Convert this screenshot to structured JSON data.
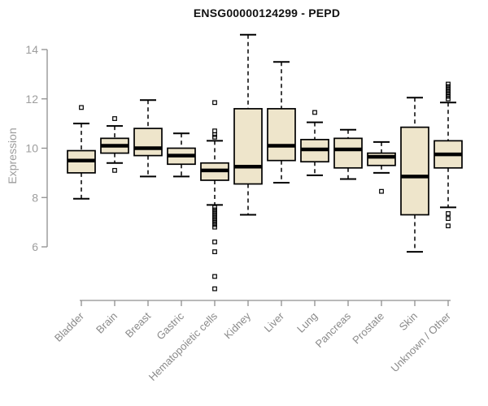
{
  "title": "ENSG00000124299 - PEPD",
  "y_axis": {
    "label": "Expression",
    "ticks": [
      6,
      8,
      10,
      12,
      14
    ]
  },
  "colors": {
    "background": "#ffffff",
    "box_fill": "#EEE5CB",
    "box_border": "#000000",
    "median": "#000000",
    "whisker": "#000000",
    "outlier": "#000000",
    "axis": "#8f8f8f",
    "y_tick_label": "#9d9d9d",
    "x_tick_label": "#8a8a8a",
    "title": "#111111"
  },
  "chart_data": {
    "type": "boxplot",
    "title": "ENSG00000124299 - PEPD",
    "xlabel": "",
    "ylabel": "Expression",
    "ylim": [
      4,
      14.7
    ],
    "yticks": [
      6,
      8,
      10,
      12,
      14
    ],
    "grid": false,
    "legend": null,
    "categories": [
      "Bladder",
      "Brain",
      "Breast",
      "Gastric",
      "Hematopoietic cells",
      "Kidney",
      "Liver",
      "Lung",
      "Pancreas",
      "Prostate",
      "Skin",
      "Unknown / Other"
    ],
    "series": [
      {
        "name": "Bladder",
        "whisker_low": 7.95,
        "q1": 9.0,
        "median": 9.5,
        "q3": 9.9,
        "whisker_high": 11.0,
        "outliers": [
          11.65
        ]
      },
      {
        "name": "Brain",
        "whisker_low": 9.4,
        "q1": 9.8,
        "median": 10.1,
        "q3": 10.4,
        "whisker_high": 10.9,
        "outliers": [
          11.2,
          9.1
        ]
      },
      {
        "name": "Breast",
        "whisker_low": 8.85,
        "q1": 9.7,
        "median": 10.0,
        "q3": 10.8,
        "whisker_high": 11.95,
        "outliers": []
      },
      {
        "name": "Gastric",
        "whisker_low": 8.85,
        "q1": 9.35,
        "median": 9.7,
        "q3": 10.0,
        "whisker_high": 10.6,
        "outliers": []
      },
      {
        "name": "Hematopoietic cells",
        "whisker_low": 7.7,
        "q1": 8.7,
        "median": 9.1,
        "q3": 9.4,
        "whisker_high": 10.3,
        "outliers": [
          11.85,
          10.7,
          10.55,
          10.45,
          7.6,
          7.5,
          7.4,
          7.3,
          7.2,
          7.1,
          7.0,
          6.9,
          6.8,
          6.2,
          5.8,
          4.8,
          4.3
        ]
      },
      {
        "name": "Kidney",
        "whisker_low": 7.3,
        "q1": 8.55,
        "median": 9.25,
        "q3": 11.6,
        "whisker_high": 14.6,
        "outliers": []
      },
      {
        "name": "Liver",
        "whisker_low": 8.6,
        "q1": 9.5,
        "median": 10.1,
        "q3": 11.6,
        "whisker_high": 13.5,
        "outliers": []
      },
      {
        "name": "Lung",
        "whisker_low": 8.9,
        "q1": 9.45,
        "median": 9.95,
        "q3": 10.35,
        "whisker_high": 11.05,
        "outliers": [
          11.45
        ]
      },
      {
        "name": "Pancreas",
        "whisker_low": 8.75,
        "q1": 9.2,
        "median": 9.95,
        "q3": 10.4,
        "whisker_high": 10.75,
        "outliers": []
      },
      {
        "name": "Prostate",
        "whisker_low": 9.0,
        "q1": 9.3,
        "median": 9.65,
        "q3": 9.8,
        "whisker_high": 10.25,
        "outliers": [
          8.25
        ]
      },
      {
        "name": "Skin",
        "whisker_low": 5.8,
        "q1": 7.3,
        "median": 8.85,
        "q3": 10.85,
        "whisker_high": 12.05,
        "outliers": []
      },
      {
        "name": "Unknown / Other",
        "whisker_low": 7.6,
        "q1": 9.2,
        "median": 9.75,
        "q3": 10.3,
        "whisker_high": 11.85,
        "outliers": [
          12.6,
          12.5,
          12.4,
          12.3,
          12.2,
          12.1,
          12.0,
          7.35,
          7.15,
          6.85
        ]
      }
    ]
  }
}
